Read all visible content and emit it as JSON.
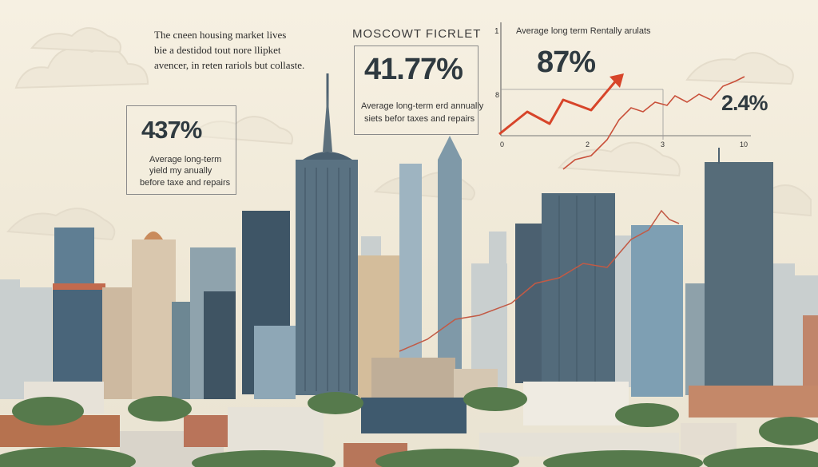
{
  "intro": {
    "line1": "The cneen housing market lives",
    "line2": "bie a destidod tout nore llipket",
    "line3": "avencer, in reten rariols but collaste."
  },
  "left_stat": {
    "value": "437%",
    "line1": "Average long-term",
    "line2": "yield my anually",
    "line3": "before taxe and repairs"
  },
  "center_stat": {
    "title": "MOSCOWT FICRLET",
    "value": "41.77%",
    "line1": "Average long-term erd annually",
    "line2": "siets befor taxes and repairs"
  },
  "right_chart": {
    "title": "Average long term Rentally arulats",
    "value": "87%",
    "y_top_label": "1",
    "y_mid_label": "8",
    "x_labels": [
      "0",
      "2",
      "3",
      "10"
    ],
    "side_value": "2.4%"
  },
  "colors": {
    "background": "#f4eedf",
    "red_line": "#d7452a",
    "tower_blue": "#56707f",
    "text": "#2b2b2b"
  }
}
